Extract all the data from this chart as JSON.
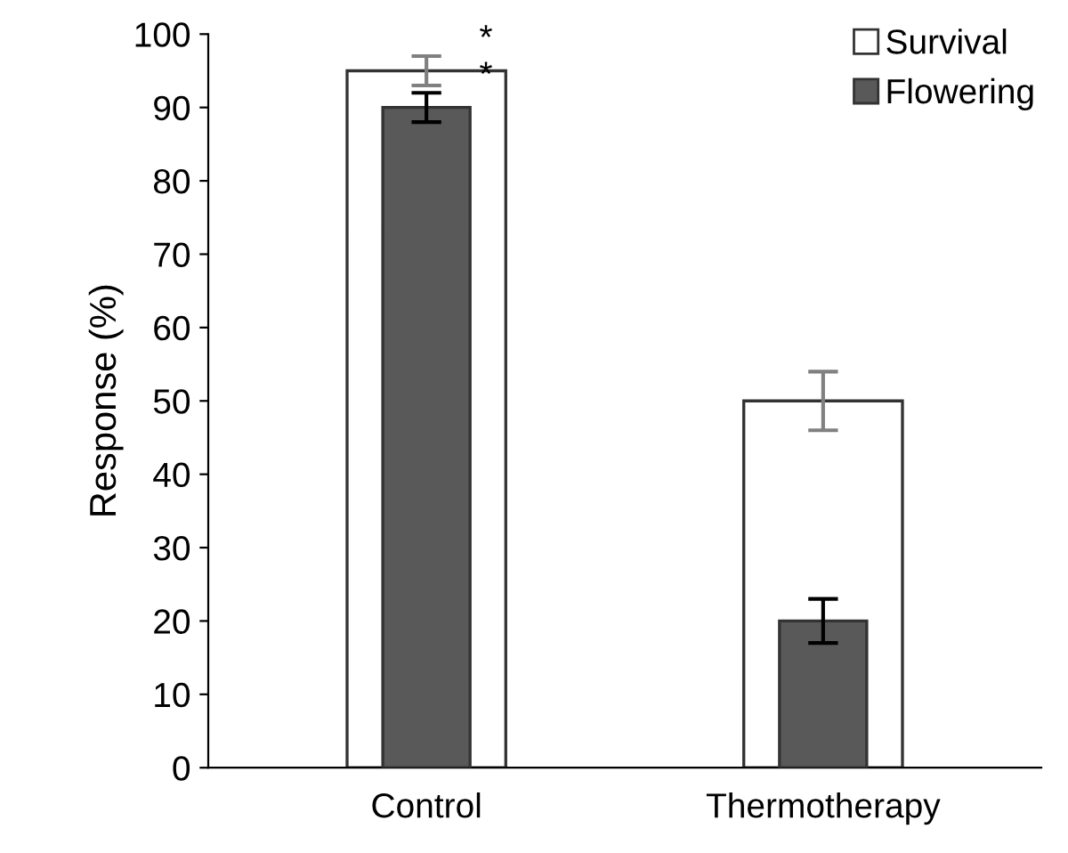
{
  "chart_data": {
    "type": "bar",
    "ylabel": "Response (%)",
    "categories": [
      "Control",
      "Thermotherapy"
    ],
    "series": [
      {
        "name": "Survival",
        "color": "#ffffff",
        "values": [
          95,
          50
        ],
        "errors": [
          2,
          4
        ]
      },
      {
        "name": "Flowering",
        "color": "#595959",
        "values": [
          90,
          20
        ],
        "errors": [
          2,
          3
        ]
      }
    ],
    "annotations": [
      {
        "text": "*",
        "x": "Control",
        "y": 97
      },
      {
        "text": "*",
        "x": "Control",
        "y": 92
      }
    ],
    "ylim": [
      0,
      100
    ],
    "yticks": [
      0,
      10,
      20,
      30,
      40,
      50,
      60,
      70,
      80,
      90,
      100
    ],
    "grid": false,
    "legend": "top right"
  }
}
